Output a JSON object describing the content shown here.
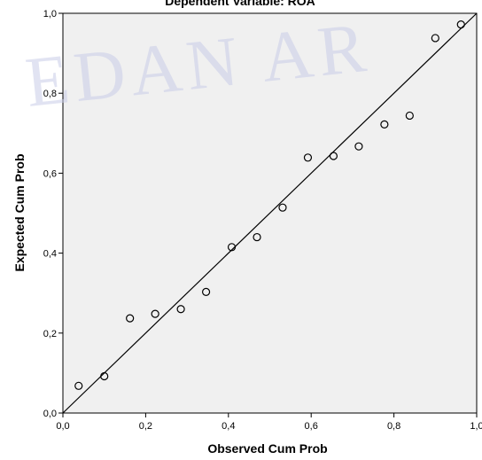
{
  "chart_data": {
    "type": "scatter",
    "title": "Dependent Variable: ROA",
    "xlabel": "Observed Cum Prob",
    "ylabel": "Expected Cum Prob",
    "xlim": [
      0,
      1
    ],
    "ylim": [
      0,
      1
    ],
    "xticks": [
      "0,0",
      "0,2",
      "0,4",
      "0,6",
      "0,8",
      "1,0"
    ],
    "yticks": [
      "0,0",
      "0,2",
      "0,4",
      "0,6",
      "0,8",
      "1,0"
    ],
    "xtick_values": [
      0,
      0.2,
      0.4,
      0.6,
      0.8,
      1.0
    ],
    "ytick_values": [
      0,
      0.2,
      0.4,
      0.6,
      0.8,
      1.0
    ],
    "grid": false,
    "reference_line": {
      "from": [
        0,
        0
      ],
      "to": [
        1,
        1
      ]
    },
    "points": [
      {
        "x": 0.038,
        "y": 0.068
      },
      {
        "x": 0.1,
        "y": 0.092
      },
      {
        "x": 0.162,
        "y": 0.237
      },
      {
        "x": 0.223,
        "y": 0.248
      },
      {
        "x": 0.285,
        "y": 0.26
      },
      {
        "x": 0.346,
        "y": 0.303
      },
      {
        "x": 0.408,
        "y": 0.415
      },
      {
        "x": 0.469,
        "y": 0.44
      },
      {
        "x": 0.531,
        "y": 0.514
      },
      {
        "x": 0.592,
        "y": 0.639
      },
      {
        "x": 0.654,
        "y": 0.643
      },
      {
        "x": 0.715,
        "y": 0.667
      },
      {
        "x": 0.777,
        "y": 0.722
      },
      {
        "x": 0.838,
        "y": 0.744
      },
      {
        "x": 0.9,
        "y": 0.938
      },
      {
        "x": 0.962,
        "y": 0.972
      }
    ],
    "colors": {
      "plot_background": "#f0f0f0",
      "line": "#000000",
      "marker": "#000000"
    }
  },
  "watermark_text": "EDAN AR"
}
